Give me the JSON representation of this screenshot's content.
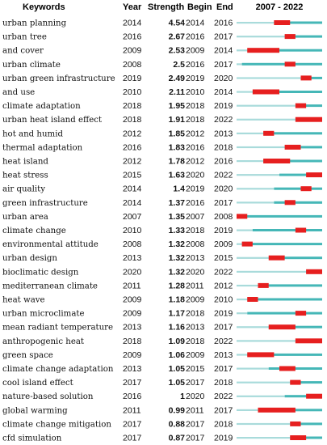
{
  "columns": {
    "keywords": "Keywords",
    "year": "Year",
    "strength": "Strength",
    "begin": "Begin",
    "end": "End",
    "period": "2007 - 2022"
  },
  "chart_data": {
    "type": "table",
    "start_year": 2007,
    "end_year": 2022,
    "colors": {
      "base": "#a9dbdb",
      "active": "#45b7b7",
      "burst": "#e61f1f"
    },
    "rows": [
      {
        "keyword": "urban planning",
        "year": "2014",
        "strength": "4.54",
        "begin": "2014",
        "end": "2016"
      },
      {
        "keyword": "urban tree",
        "year": "2016",
        "strength": "2.67",
        "begin": "2016",
        "end": "2017"
      },
      {
        "keyword": "and cover",
        "year": "2009",
        "strength": "2.53",
        "begin": "2009",
        "end": "2014"
      },
      {
        "keyword": "urban climate",
        "year": "2008",
        "strength": "2.5",
        "begin": "2016",
        "end": "2017"
      },
      {
        "keyword": "urban green infrastructure",
        "year": "2019",
        "strength": "2.49",
        "begin": "2019",
        "end": "2020"
      },
      {
        "keyword": "and use",
        "year": "2010",
        "strength": "2.11",
        "begin": "2010",
        "end": "2014"
      },
      {
        "keyword": "climate adaptation",
        "year": "2018",
        "strength": "1.95",
        "begin": "2018",
        "end": "2019"
      },
      {
        "keyword": "urban heat island effect",
        "year": "2018",
        "strength": "1.91",
        "begin": "2018",
        "end": "2022"
      },
      {
        "keyword": "hot and humid",
        "year": "2012",
        "strength": "1.85",
        "begin": "2012",
        "end": "2013"
      },
      {
        "keyword": "thermal adaptation",
        "year": "2016",
        "strength": "1.83",
        "begin": "2016",
        "end": "2018"
      },
      {
        "keyword": "heat island",
        "year": "2012",
        "strength": "1.78",
        "begin": "2012",
        "end": "2016"
      },
      {
        "keyword": "heat stress",
        "year": "2015",
        "strength": "1.63",
        "begin": "2020",
        "end": "2022"
      },
      {
        "keyword": "air quality",
        "year": "2014",
        "strength": "1.4",
        "begin": "2019",
        "end": "2020"
      },
      {
        "keyword": "green infrastructure",
        "year": "2014",
        "strength": "1.37",
        "begin": "2016",
        "end": "2017"
      },
      {
        "keyword": "urban area",
        "year": "2007",
        "strength": "1.35",
        "begin": "2007",
        "end": "2008"
      },
      {
        "keyword": "climate change",
        "year": "2010",
        "strength": "1.33",
        "begin": "2018",
        "end": "2019"
      },
      {
        "keyword": "environmental attitude",
        "year": "2008",
        "strength": "1.32",
        "begin": "2008",
        "end": "2009"
      },
      {
        "keyword": "urban design",
        "year": "2013",
        "strength": "1.32",
        "begin": "2013",
        "end": "2015"
      },
      {
        "keyword": "bioclimatic design",
        "year": "2020",
        "strength": "1.32",
        "begin": "2020",
        "end": "2022"
      },
      {
        "keyword": "mediterranean climate",
        "year": "2011",
        "strength": "1.28",
        "begin": "2011",
        "end": "2012"
      },
      {
        "keyword": "heat wave",
        "year": "2009",
        "strength": "1.18",
        "begin": "2009",
        "end": "2010"
      },
      {
        "keyword": "urban microclimate",
        "year": "2009",
        "strength": "1.17",
        "begin": "2018",
        "end": "2019"
      },
      {
        "keyword": "mean radiant temperature",
        "year": "2013",
        "strength": "1.16",
        "begin": "2013",
        "end": "2017"
      },
      {
        "keyword": "anthropogenic heat",
        "year": "2018",
        "strength": "1.09",
        "begin": "2018",
        "end": "2022"
      },
      {
        "keyword": "green space",
        "year": "2009",
        "strength": "1.06",
        "begin": "2009",
        "end": "2013"
      },
      {
        "keyword": "climate change adaptation",
        "year": "2013",
        "strength": "1.05",
        "begin": "2015",
        "end": "2017"
      },
      {
        "keyword": "cool island effect",
        "year": "2017",
        "strength": "1.05",
        "begin": "2017",
        "end": "2018"
      },
      {
        "keyword": "nature-based solution",
        "year": "2016",
        "strength": "1",
        "begin": "2020",
        "end": "2022"
      },
      {
        "keyword": "global warming",
        "year": "2011",
        "strength": "0.99",
        "begin": "2011",
        "end": "2017"
      },
      {
        "keyword": "climate change mitigation",
        "year": "2017",
        "strength": "0.88",
        "begin": "2017",
        "end": "2018"
      },
      {
        "keyword": "cfd simulation",
        "year": "2017",
        "strength": "0.87",
        "begin": "2017",
        "end": "2019"
      }
    ]
  }
}
